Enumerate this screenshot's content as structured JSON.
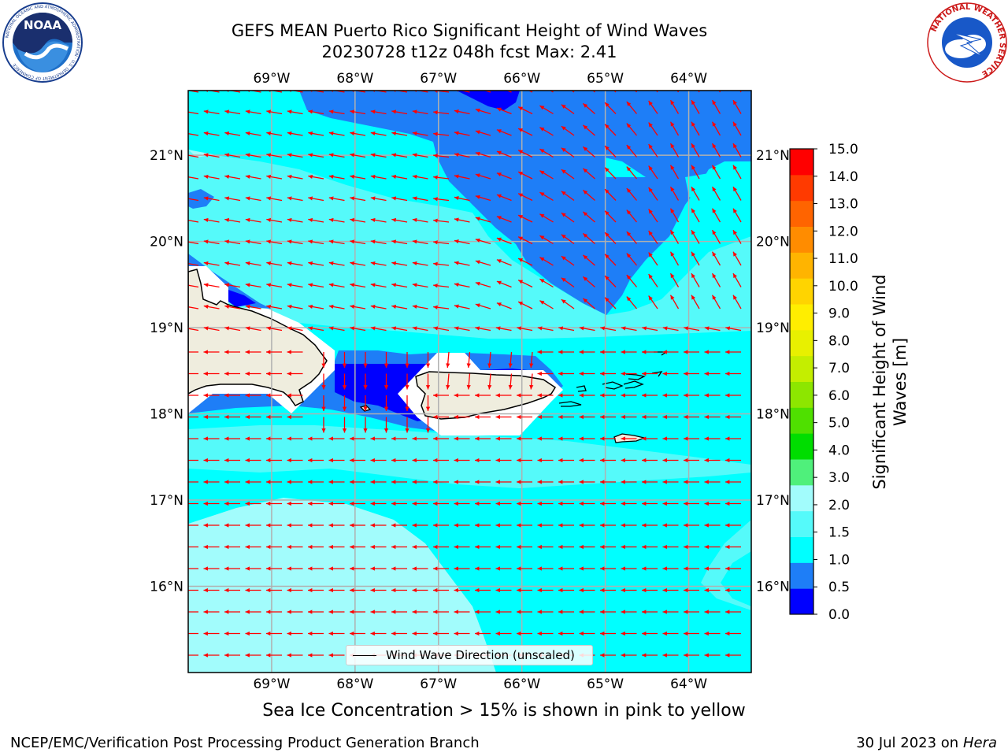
{
  "title": {
    "line1": "GEFS MEAN Puerto Rico Significant Height of Wind Waves",
    "line2": "20230728 t12z 048h fcst   Max: 2.41"
  },
  "map": {
    "lon_labels": [
      "69°W",
      "68°W",
      "67°W",
      "66°W",
      "65°W",
      "64°W"
    ],
    "lat_labels": [
      "21°N",
      "20°N",
      "19°N",
      "18°N",
      "17°N",
      "16°N"
    ],
    "extent": {
      "lon": [
        -70.0,
        -63.25
      ],
      "lat": [
        15.0,
        21.75
      ]
    },
    "field_colors": {
      "0.0-0.5": "#0000ff",
      "0.5-1.0": "#1e7ef7",
      "1.0-1.5": "#00ffff",
      "1.5-2.0": "#55fafa",
      "2.0-3.0": "#a2fcfc",
      "land": "#efedde"
    },
    "arrow_color": "#ff0000",
    "grid": true,
    "legend_text": "Wind Wave Direction (unscaled)"
  },
  "colorbar": {
    "title": "Significant Height of Wind Waves [m]",
    "ticks": [
      "15.0",
      "14.0",
      "13.0",
      "12.0",
      "11.0",
      "10.0",
      "9.0",
      "8.0",
      "7.0",
      "6.0",
      "5.0",
      "4.0",
      "3.0",
      "2.0",
      "1.5",
      "1.0",
      "0.5",
      "0.0"
    ],
    "colors": [
      "#0000ff",
      "#1e7ef7",
      "#00ffff",
      "#55fafa",
      "#a2fcfc",
      "#4ff07b",
      "#00dd00",
      "#4fe000",
      "#8de600",
      "#c4ee00",
      "#e8f000",
      "#ffee00",
      "#ffd400",
      "#ffb400",
      "#ff8c00",
      "#ff6400",
      "#ff3a00",
      "#ff0000"
    ]
  },
  "logos": {
    "noaa_text": "NOAA",
    "noaa_ring": "NATIONAL OCEANIC AND ATMOSPHERIC ADMINISTRATION · U.S. DEPARTMENT OF COMMERCE",
    "nws_ring": "NATIONAL WEATHER SERVICE"
  },
  "notes": {
    "sea_ice": "Sea Ice Concentration > 15% is shown in pink to yellow",
    "footer_left": "NCEP/EMC/Verification Post Processing Product Generation Branch",
    "footer_right_date": "30 Jul 2023 on ",
    "footer_right_host": "Hera"
  }
}
